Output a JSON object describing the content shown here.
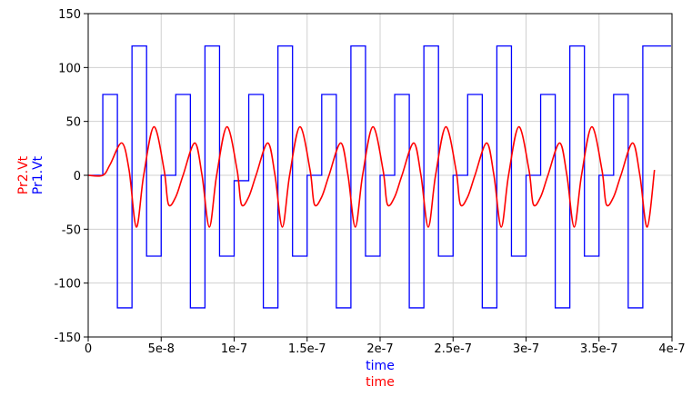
{
  "chart_data": {
    "type": "line",
    "grid": true,
    "legend": "left-vertical",
    "xlim": [
      0,
      4e-07
    ],
    "ylim": [
      -150,
      150
    ],
    "x_ticks": [
      0,
      5e-08,
      1e-07,
      1.5e-07,
      2e-07,
      2.5e-07,
      3e-07,
      3.5e-07,
      4e-07
    ],
    "x_tick_labels": [
      "0",
      "5e-8",
      "1e-7",
      "1.5e-7",
      "2e-7",
      "2.5e-7",
      "3e-7",
      "3.5e-7",
      "4e-7"
    ],
    "y_ticks": [
      150,
      100,
      50,
      0,
      -50,
      -100,
      -150
    ],
    "y_tick_labels": [
      "150",
      "100",
      "50",
      "0",
      "-50",
      "-100",
      "-150"
    ],
    "xlabels": [
      {
        "text": "time",
        "color": "#0000ff"
      },
      {
        "text": "time",
        "color": "#ff0000"
      }
    ],
    "ylabels": [
      {
        "text": "Pr2.Vt",
        "color": "#ff0000"
      },
      {
        "text": "Pr1.Vt",
        "color": "#0000ff"
      }
    ],
    "series": [
      {
        "name": "Pr1.Vt",
        "color": "#0000ff",
        "step": true,
        "x": [
          0,
          1e-08,
          2e-08,
          3e-08,
          4e-08,
          5e-08,
          6e-08,
          7e-08,
          8e-08,
          9e-08,
          1e-07,
          1.1e-07,
          1.2e-07,
          1.3e-07,
          1.4e-07,
          1.5e-07,
          1.6e-07,
          1.7e-07,
          1.8e-07,
          1.9e-07,
          2e-07,
          2.1e-07,
          2.2e-07,
          2.3e-07,
          2.4e-07,
          2.5e-07,
          2.6e-07,
          2.7e-07,
          2.8e-07,
          2.9e-07,
          3e-07,
          3.1e-07,
          3.2e-07,
          3.3e-07,
          3.4e-07,
          3.5e-07,
          3.6e-07,
          3.7e-07,
          3.8e-07,
          3.9e-07
        ],
        "y": [
          0,
          75,
          -123,
          120,
          -75,
          0,
          75,
          -123,
          120,
          -75,
          -5,
          75,
          -123,
          120,
          -75,
          0,
          75,
          -123,
          120,
          -75,
          0,
          75,
          -123,
          120,
          -75,
          0,
          75,
          -123,
          120,
          -75,
          0,
          75,
          -123,
          120,
          -75,
          0,
          75,
          -123,
          120,
          120
        ]
      },
      {
        "name": "Pr2.Vt",
        "color": "#ff0000",
        "step": false,
        "x": [
          0,
          1e-08,
          1.5e-08,
          2.3e-08,
          2.8e-08,
          3.3e-08,
          3.8e-08,
          4.5e-08,
          5.2e-08,
          5.5e-08,
          6e-08,
          6.5e-08,
          7.3e-08,
          7.8e-08,
          8.3e-08,
          8.8e-08,
          9.5e-08,
          1.02e-07,
          1.05e-07,
          1.1e-07,
          1.15e-07,
          1.23e-07,
          1.28e-07,
          1.33e-07,
          1.38e-07,
          1.45e-07,
          1.52e-07,
          1.55e-07,
          1.6e-07,
          1.65e-07,
          1.73e-07,
          1.78e-07,
          1.83e-07,
          1.88e-07,
          1.95e-07,
          2.02e-07,
          2.05e-07,
          2.1e-07,
          2.15e-07,
          2.23e-07,
          2.28e-07,
          2.33e-07,
          2.38e-07,
          2.45e-07,
          2.52e-07,
          2.55e-07,
          2.6e-07,
          2.65e-07,
          2.73e-07,
          2.78e-07,
          2.83e-07,
          2.88e-07,
          2.95e-07,
          3.02e-07,
          3.05e-07,
          3.1e-07,
          3.15e-07,
          3.23e-07,
          3.28e-07,
          3.33e-07,
          3.38e-07,
          3.45e-07,
          3.52e-07,
          3.55e-07,
          3.6e-07,
          3.65e-07,
          3.73e-07,
          3.78e-07,
          3.83e-07,
          3.88e-07
        ],
        "y": [
          0,
          0,
          10,
          30,
          5,
          -48,
          0,
          45,
          5,
          -27,
          -20,
          0,
          30,
          0,
          -48,
          0,
          45,
          5,
          -27,
          -20,
          0,
          30,
          0,
          -48,
          0,
          45,
          5,
          -27,
          -20,
          0,
          30,
          0,
          -48,
          0,
          45,
          5,
          -27,
          -20,
          0,
          30,
          0,
          -48,
          0,
          45,
          5,
          -27,
          -20,
          0,
          30,
          0,
          -48,
          0,
          45,
          5,
          -27,
          -20,
          0,
          30,
          0,
          -48,
          0,
          45,
          5,
          -27,
          -20,
          0,
          30,
          0,
          -48,
          5
        ]
      }
    ]
  }
}
